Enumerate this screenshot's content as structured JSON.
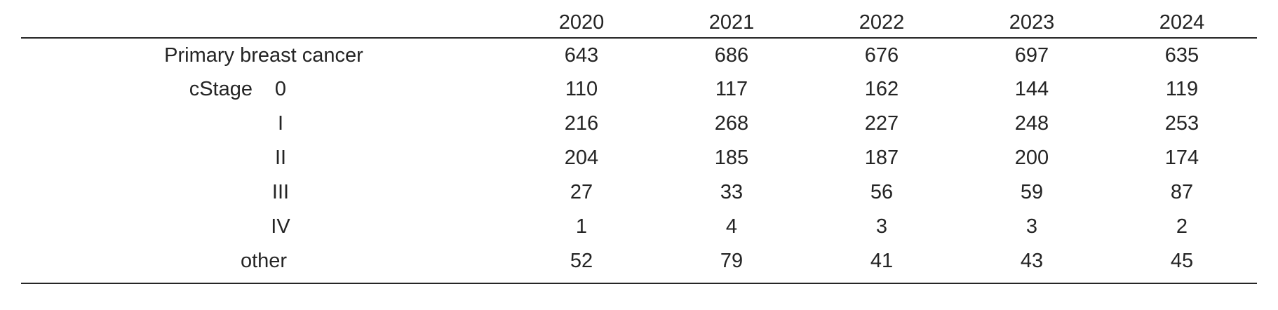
{
  "table": {
    "header": {
      "years": [
        "2020",
        "2021",
        "2022",
        "2023",
        "2024"
      ]
    },
    "rows": [
      {
        "label": "Primary breast cancer",
        "values": [
          643,
          686,
          676,
          697,
          635
        ]
      },
      {
        "group": "cStage",
        "stage": "0",
        "values": [
          110,
          117,
          162,
          144,
          119
        ]
      },
      {
        "stage": "I",
        "values": [
          216,
          268,
          227,
          248,
          253
        ]
      },
      {
        "stage": "II",
        "values": [
          204,
          185,
          187,
          200,
          174
        ]
      },
      {
        "stage": "III",
        "values": [
          27,
          33,
          56,
          59,
          87
        ]
      },
      {
        "stage": "IV",
        "values": [
          1,
          4,
          3,
          3,
          2
        ]
      },
      {
        "label": "other",
        "values": [
          52,
          79,
          41,
          43,
          45
        ]
      }
    ]
  },
  "chart_data": {
    "type": "table",
    "columns": [
      "",
      "2020",
      "2021",
      "2022",
      "2023",
      "2024"
    ],
    "rows": [
      [
        "Primary breast cancer",
        643,
        686,
        676,
        697,
        635
      ],
      [
        "cStage 0",
        110,
        117,
        162,
        144,
        119
      ],
      [
        "cStage I",
        216,
        268,
        227,
        248,
        253
      ],
      [
        "cStage II",
        204,
        185,
        187,
        200,
        174
      ],
      [
        "cStage III",
        27,
        33,
        56,
        59,
        87
      ],
      [
        "cStage IV",
        1,
        4,
        3,
        3,
        2
      ],
      [
        "other",
        52,
        79,
        41,
        43,
        45
      ]
    ]
  },
  "colors": {
    "background": "#ffffff",
    "text": "#242424",
    "rule": "#262626"
  }
}
